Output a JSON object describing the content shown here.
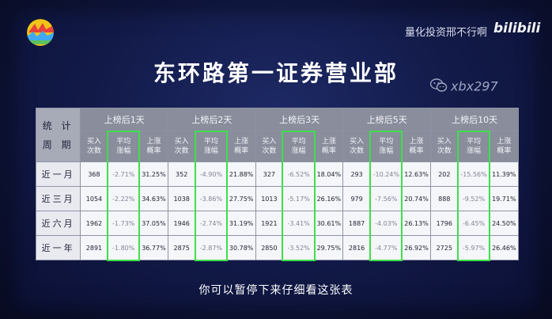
{
  "watermark": {
    "channel": "量化投资邢不行啊",
    "platform": "bilibili"
  },
  "title": "东环路第一证券营业部",
  "wechat_tag": "xbx297",
  "table": {
    "corner_label": [
      "统 计",
      "周 期"
    ],
    "groups": [
      "上榜后1天",
      "上榜后2天",
      "上榜后3天",
      "上榜后5天",
      "上榜后10天"
    ],
    "sub_headers": [
      "买入\n次数",
      "平均\n涨幅",
      "上涨\n概率"
    ],
    "rows": [
      {
        "label": "近一月",
        "cells": [
          "368",
          "-2.71%",
          "31.25%",
          "352",
          "-4.90%",
          "21.88%",
          "327",
          "-6.52%",
          "18.04%",
          "293",
          "-10.24%",
          "12.63%",
          "202",
          "-15.56%",
          "11.39%"
        ]
      },
      {
        "label": "近三月",
        "cells": [
          "1054",
          "-2.22%",
          "34.63%",
          "1038",
          "-3.86%",
          "27.75%",
          "1013",
          "-5.17%",
          "26.16%",
          "979",
          "-7.56%",
          "20.74%",
          "888",
          "-9.52%",
          "19.71%"
        ]
      },
      {
        "label": "近六月",
        "cells": [
          "1962",
          "-1.73%",
          "37.05%",
          "1946",
          "-2.74%",
          "31.19%",
          "1921",
          "-3.41%",
          "30.61%",
          "1887",
          "-4.03%",
          "26.13%",
          "1796",
          "-6.45%",
          "24.50%"
        ]
      },
      {
        "label": "近一年",
        "cells": [
          "2891",
          "-1.80%",
          "36.77%",
          "2875",
          "-2.87%",
          "30.78%",
          "2850",
          "-3.52%",
          "29.75%",
          "2816",
          "-4.77%",
          "26.92%",
          "2725",
          "-5.97%",
          "26.46%"
        ]
      }
    ]
  },
  "subtitle": "你可以暂停下来仔细看这张表",
  "colors": {
    "highlight": "#3de04b",
    "header_bg": "#898d9c",
    "background": "#121a48"
  }
}
